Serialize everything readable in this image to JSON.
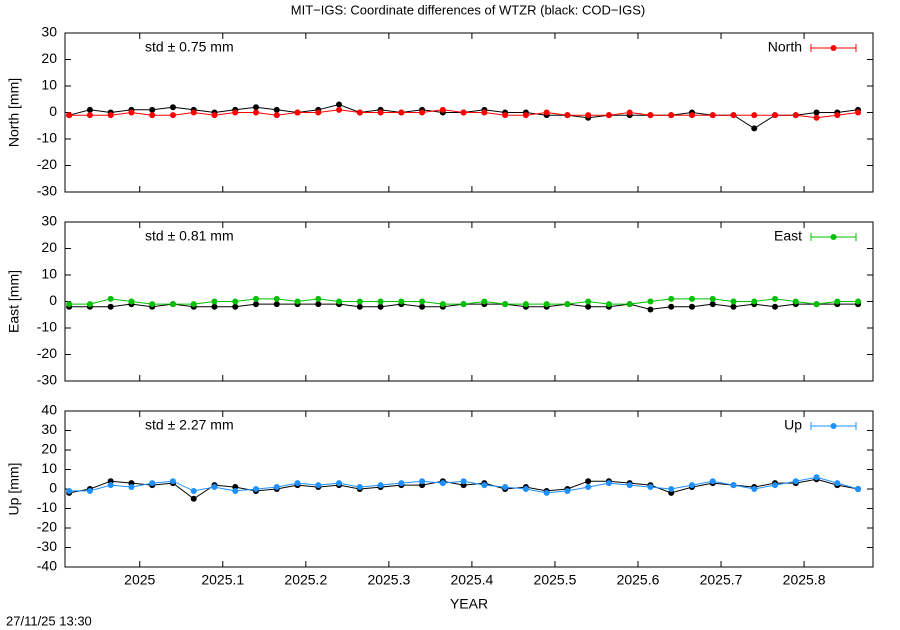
{
  "title": "MIT−IGS: Coordinate differences of WTZR (black: COD−IGS)",
  "timestamp": "27/11/25 13:30",
  "chart_data": [
    {
      "type": "line",
      "y_label": "North [mm]",
      "annotation": "std ± 0.75 mm",
      "xlim": [
        2024.91,
        2025.883
      ],
      "ylim": [
        -30,
        30
      ],
      "yticks": [
        -30,
        -20,
        -10,
        0,
        10,
        20,
        30
      ],
      "legend": "top-right",
      "x": [
        2024.915,
        2024.94,
        2024.965,
        2024.99,
        2025.015,
        2025.04,
        2025.065,
        2025.09,
        2025.115,
        2025.14,
        2025.165,
        2025.19,
        2025.215,
        2025.24,
        2025.265,
        2025.29,
        2025.315,
        2025.34,
        2025.365,
        2025.39,
        2025.415,
        2025.44,
        2025.465,
        2025.49,
        2025.515,
        2025.54,
        2025.565,
        2025.59,
        2025.615,
        2025.64,
        2025.665,
        2025.69,
        2025.715,
        2025.74,
        2025.765,
        2025.79,
        2025.815,
        2025.84,
        2025.865
      ],
      "series": [
        {
          "color": "#000000",
          "values": [
            -1,
            1,
            0,
            1,
            1,
            2,
            1,
            0,
            1,
            2,
            1,
            0,
            1,
            3,
            0,
            1,
            0,
            1,
            0,
            0,
            1,
            0,
            0,
            -1,
            -1,
            -2,
            -1,
            -1,
            -1,
            -1,
            0,
            -1,
            -1,
            -6,
            -1,
            -1,
            0,
            0,
            1
          ]
        },
        {
          "name": "North",
          "color": "#ff0000",
          "values": [
            -1,
            -1,
            -1,
            0,
            -1,
            -1,
            0,
            -1,
            0,
            0,
            -1,
            0,
            0,
            1,
            0,
            0,
            0,
            0,
            1,
            0,
            0,
            -1,
            -1,
            0,
            -1,
            -1,
            -1,
            0,
            -1,
            -1,
            -1,
            -1,
            -1,
            -1,
            -1,
            -1,
            -2,
            -1,
            0
          ]
        }
      ]
    },
    {
      "type": "line",
      "y_label": "East [mm]",
      "annotation": "std ± 0.81 mm",
      "xlim": [
        2024.91,
        2025.883
      ],
      "ylim": [
        -30,
        30
      ],
      "yticks": [
        -30,
        -20,
        -10,
        0,
        10,
        20,
        30
      ],
      "legend": "top-right",
      "x": [
        2024.915,
        2024.94,
        2024.965,
        2024.99,
        2025.015,
        2025.04,
        2025.065,
        2025.09,
        2025.115,
        2025.14,
        2025.165,
        2025.19,
        2025.215,
        2025.24,
        2025.265,
        2025.29,
        2025.315,
        2025.34,
        2025.365,
        2025.39,
        2025.415,
        2025.44,
        2025.465,
        2025.49,
        2025.515,
        2025.54,
        2025.565,
        2025.59,
        2025.615,
        2025.64,
        2025.665,
        2025.69,
        2025.715,
        2025.74,
        2025.765,
        2025.79,
        2025.815,
        2025.84,
        2025.865
      ],
      "series": [
        {
          "color": "#000000",
          "values": [
            -2,
            -2,
            -2,
            -1,
            -2,
            -1,
            -2,
            -2,
            -2,
            -1,
            -1,
            -1,
            -1,
            -1,
            -2,
            -2,
            -1,
            -2,
            -2,
            -1,
            -1,
            -1,
            -2,
            -2,
            -1,
            -2,
            -2,
            -1,
            -3,
            -2,
            -2,
            -1,
            -2,
            -1,
            -2,
            -1,
            -1,
            -1,
            -1
          ]
        },
        {
          "name": "East",
          "color": "#00c000",
          "values": [
            -1,
            -1,
            1,
            0,
            -1,
            -1,
            -1,
            0,
            0,
            1,
            1,
            0,
            1,
            0,
            0,
            0,
            0,
            0,
            -1,
            -1,
            0,
            -1,
            -1,
            -1,
            -1,
            0,
            -1,
            -1,
            0,
            1,
            1,
            1,
            0,
            0,
            1,
            0,
            -1,
            0,
            0
          ]
        }
      ]
    },
    {
      "type": "line",
      "y_label": "Up [mm]",
      "annotation": "std ± 2.27 mm",
      "x_label": "YEAR",
      "xlim": [
        2024.91,
        2025.883
      ],
      "xticks": [
        2025,
        2025.1,
        2025.2,
        2025.3,
        2025.4,
        2025.5,
        2025.6,
        2025.7,
        2025.8
      ],
      "ylim": [
        -40,
        40
      ],
      "yticks": [
        -40,
        -30,
        -20,
        -10,
        0,
        10,
        20,
        30,
        40
      ],
      "legend": "top-right",
      "x": [
        2024.915,
        2024.94,
        2024.965,
        2024.99,
        2025.015,
        2025.04,
        2025.065,
        2025.09,
        2025.115,
        2025.14,
        2025.165,
        2025.19,
        2025.215,
        2025.24,
        2025.265,
        2025.29,
        2025.315,
        2025.34,
        2025.365,
        2025.39,
        2025.415,
        2025.44,
        2025.465,
        2025.49,
        2025.515,
        2025.54,
        2025.565,
        2025.59,
        2025.615,
        2025.64,
        2025.665,
        2025.69,
        2025.715,
        2025.74,
        2025.765,
        2025.79,
        2025.815,
        2025.84,
        2025.865
      ],
      "series": [
        {
          "color": "#000000",
          "values": [
            -2,
            0,
            4,
            3,
            2,
            3,
            -5,
            2,
            1,
            -1,
            0,
            2,
            1,
            2,
            0,
            1,
            2,
            2,
            4,
            2,
            3,
            0,
            1,
            -1,
            0,
            4,
            4,
            3,
            2,
            -2,
            1,
            3,
            2,
            1,
            3,
            3,
            5,
            2,
            0
          ]
        },
        {
          "name": "Up",
          "color": "#1e90ff",
          "values": [
            -1,
            -1,
            2,
            1,
            3,
            4,
            -1,
            1,
            -1,
            0,
            1,
            3,
            2,
            3,
            1,
            2,
            3,
            4,
            3,
            4,
            2,
            1,
            0,
            -2,
            -1,
            1,
            3,
            2,
            1,
            0,
            2,
            4,
            2,
            0,
            2,
            4,
            6,
            3,
            0
          ]
        }
      ]
    }
  ]
}
